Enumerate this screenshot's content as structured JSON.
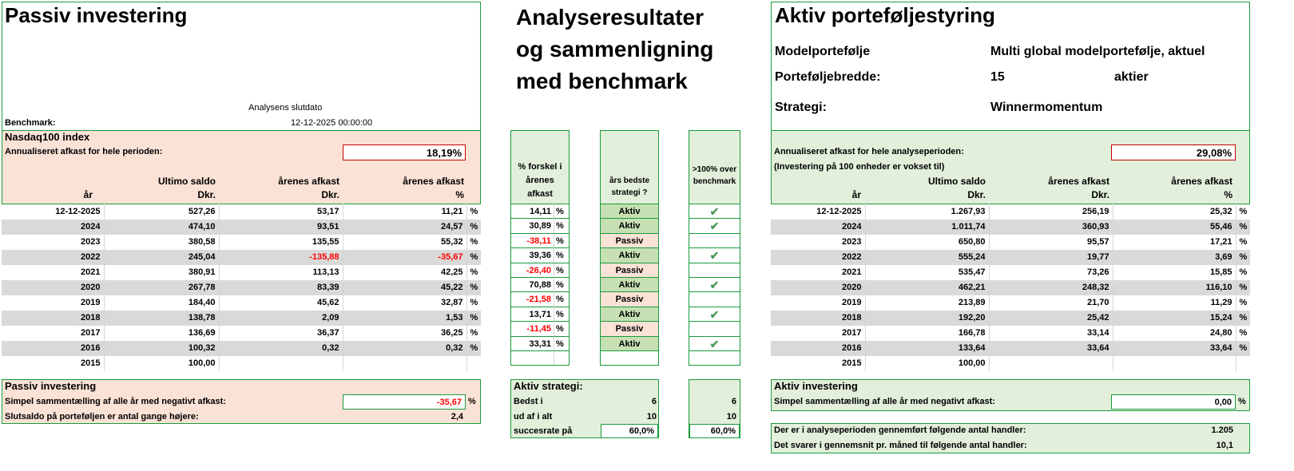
{
  "left": {
    "title": "Passiv investering",
    "slutdato_label": "Analysens slutdato",
    "benchmark_label": "Benchmark:",
    "slutdato_value": "12-12-2025  00:00:00",
    "index_name": "Nasdaq100 index",
    "annual_label": "Annualiseret afkast for hele perioden:",
    "annual_value": "18,19%",
    "headers": {
      "saldo1": "Ultimo saldo",
      "afkast1": "årenes afkast",
      "afkast2": "årenes afkast",
      "aar": "år",
      "dkr1": "Dkr.",
      "dkr2": "Dkr.",
      "pct": "%"
    },
    "rows": [
      {
        "year": "12-12-2025",
        "saldo": "527,26",
        "afkast": "53,17",
        "pct": "11,21",
        "unit": "%"
      },
      {
        "year": "2024",
        "saldo": "474,10",
        "afkast": "93,51",
        "pct": "24,57",
        "unit": "%"
      },
      {
        "year": "2023",
        "saldo": "380,58",
        "afkast": "135,55",
        "pct": "55,32",
        "unit": "%"
      },
      {
        "year": "2022",
        "saldo": "245,04",
        "afkast": "-135,88",
        "pct": "-35,67",
        "unit": "%"
      },
      {
        "year": "2021",
        "saldo": "380,91",
        "afkast": "113,13",
        "pct": "42,25",
        "unit": "%"
      },
      {
        "year": "2020",
        "saldo": "267,78",
        "afkast": "83,39",
        "pct": "45,22",
        "unit": "%"
      },
      {
        "year": "2019",
        "saldo": "184,40",
        "afkast": "45,62",
        "pct": "32,87",
        "unit": "%"
      },
      {
        "year": "2018",
        "saldo": "138,78",
        "afkast": "2,09",
        "pct": "1,53",
        "unit": "%"
      },
      {
        "year": "2017",
        "saldo": "136,69",
        "afkast": "36,37",
        "pct": "36,25",
        "unit": "%"
      },
      {
        "year": "2016",
        "saldo": "100,32",
        "afkast": "0,32",
        "pct": "0,32",
        "unit": "%"
      },
      {
        "year": "2015",
        "saldo": "100,00",
        "afkast": "",
        "pct": "",
        "unit": ""
      }
    ],
    "summary_title": "Passiv investering",
    "neg_label": "Simpel sammentælling af alle år med negativt afkast:",
    "neg_value": "-35,67",
    "neg_unit": "%",
    "times_label": "Slutsaldo på porteføljen er antal gange højere:",
    "times_value": "2,4"
  },
  "middle": {
    "title_line1": "Analyseresultater",
    "title_line2": "og sammenligning",
    "title_line3": "med benchmark",
    "col1_header": "% forskel i årenes afkast",
    "col2_header": "års bedste strategi ?",
    "col3_header": ">100% over benchmark",
    "rows": [
      {
        "diff": "14,11",
        "unit": "%",
        "best": "Aktiv",
        "check": "✔"
      },
      {
        "diff": "30,89",
        "unit": "%",
        "best": "Aktiv",
        "check": "✔"
      },
      {
        "diff": "-38,11",
        "unit": "%",
        "best": "Passiv",
        "check": ""
      },
      {
        "diff": "39,36",
        "unit": "%",
        "best": "Aktiv",
        "check": "✔"
      },
      {
        "diff": "-26,40",
        "unit": "%",
        "best": "Passiv",
        "check": ""
      },
      {
        "diff": "70,88",
        "unit": "%",
        "best": "Aktiv",
        "check": "✔"
      },
      {
        "diff": "-21,58",
        "unit": "%",
        "best": "Passiv",
        "check": ""
      },
      {
        "diff": "13,71",
        "unit": "%",
        "best": "Aktiv",
        "check": "✔"
      },
      {
        "diff": "-11,45",
        "unit": "%",
        "best": "Passiv",
        "check": ""
      },
      {
        "diff": "33,31",
        "unit": "%",
        "best": "Aktiv",
        "check": "✔"
      },
      {
        "diff": "",
        "unit": "",
        "best": "",
        "check": ""
      }
    ],
    "summary_title": "Aktiv strategi:",
    "bedst_label": "Bedst i",
    "bedst_value": "6",
    "bedst_value2": "6",
    "ud_label": "ud af i alt",
    "ud_value": "10",
    "ud_value2": "10",
    "succes_label": "succesrate på",
    "succes_value": "60,0%",
    "succes_value2": "60,0%"
  },
  "right": {
    "title": "Aktiv porteføljestyring",
    "model_label": "Modelportefølje",
    "model_value": "Multi global modelportefølje, aktuel",
    "bredde_label": "Porteføljebredde:",
    "bredde_value": "15",
    "bredde_unit": "aktier",
    "strategi_label": "Strategi:",
    "strategi_value": "Winnermomentum",
    "annual_label": "Annualiseret afkast for hele analyseperioden:",
    "annual_value": "29,08%",
    "invest_note": "(Investering på 100 enheder er vokset til)",
    "headers": {
      "saldo1": "Ultimo saldo",
      "afkast1": "årenes afkast",
      "afkast2": "årenes afkast",
      "aar": "år",
      "dkr1": "Dkr.",
      "dkr2": "Dkr.",
      "pct": "%"
    },
    "rows": [
      {
        "year": "12-12-2025",
        "saldo": "1.267,93",
        "afkast": "256,19",
        "pct": "25,32",
        "unit": "%"
      },
      {
        "year": "2024",
        "saldo": "1.011,74",
        "afkast": "360,93",
        "pct": "55,46",
        "unit": "%"
      },
      {
        "year": "2023",
        "saldo": "650,80",
        "afkast": "95,57",
        "pct": "17,21",
        "unit": "%"
      },
      {
        "year": "2022",
        "saldo": "555,24",
        "afkast": "19,77",
        "pct": "3,69",
        "unit": "%"
      },
      {
        "year": "2021",
        "saldo": "535,47",
        "afkast": "73,26",
        "pct": "15,85",
        "unit": "%"
      },
      {
        "year": "2020",
        "saldo": "462,21",
        "afkast": "248,32",
        "pct": "116,10",
        "unit": "%"
      },
      {
        "year": "2019",
        "saldo": "213,89",
        "afkast": "21,70",
        "pct": "11,29",
        "unit": "%"
      },
      {
        "year": "2018",
        "saldo": "192,20",
        "afkast": "25,42",
        "pct": "15,24",
        "unit": "%"
      },
      {
        "year": "2017",
        "saldo": "166,78",
        "afkast": "33,14",
        "pct": "24,80",
        "unit": "%"
      },
      {
        "year": "2016",
        "saldo": "133,64",
        "afkast": "33,64",
        "pct": "33,64",
        "unit": "%"
      },
      {
        "year": "2015",
        "saldo": "100,00",
        "afkast": "",
        "pct": "",
        "unit": ""
      }
    ],
    "summary_title": "Aktiv investering",
    "neg_label": "Simpel sammentælling af alle år med negativt afkast:",
    "neg_value": "0,00",
    "neg_unit": "%",
    "handler_label": "Der er i analyseperioden gennemført følgende antal handler:",
    "handler_value": "1.205",
    "maaned_label": "Det svarer i gennemsnit pr. måned til følgende antal handler:",
    "maaned_value": "10,1"
  }
}
